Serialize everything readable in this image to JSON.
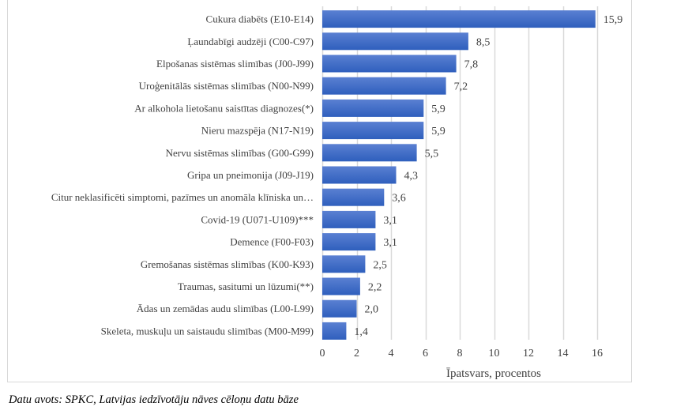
{
  "chart_data": {
    "type": "bar",
    "orientation": "horizontal",
    "categories": [
      "Cukura diabēts (E10-E14)",
      "Ļaundabīgi audzēji (C00-C97)",
      "Elpošanas sistēmas slimības (J00-J99)",
      "Uroģenitālās sistēmas slimības (N00-N99)",
      "Ar alkohola lietošanu saistītas diagnozes(*)",
      "Nieru mazspēja (N17-N19)",
      "Nervu sistēmas slimības (G00-G99)",
      "Gripa un pneimonija (J09-J19)",
      "Citur neklasificēti simptomi, pazīmes un anomāla klīniska un…",
      "Covid-19 (U071-U109)***",
      "Demence (F00-F03)",
      "Gremošanas sistēmas slimības (K00-K93)",
      "Traumas, sasitumi un lūzumi(**)",
      "Ādas un zemādas audu slimības (L00-L99)",
      "Skeleta, muskuļu un saistaudu slimības (M00-M99)"
    ],
    "values": [
      15.9,
      8.5,
      7.8,
      7.2,
      5.9,
      5.9,
      5.5,
      4.3,
      3.6,
      3.1,
      3.1,
      2.5,
      2.2,
      2.0,
      1.4
    ],
    "value_labels": [
      "15,9",
      "8,5",
      "7,8",
      "7,2",
      "5,9",
      "5,9",
      "5,5",
      "4,3",
      "3,6",
      "3,1",
      "3,1",
      "2,5",
      "2,2",
      "2,0",
      "1,4"
    ],
    "title": "",
    "xlabel": "Īpatsvars, procentos",
    "ylabel": "",
    "xlim": [
      0,
      16
    ],
    "xticks": [
      0,
      2,
      4,
      6,
      8,
      10,
      12,
      14,
      16
    ],
    "xtick_labels": [
      "0",
      "2",
      "4",
      "6",
      "8",
      "10",
      "12",
      "14",
      "16"
    ],
    "grid": true,
    "legend": "none",
    "bar_color_top": "#5a80d2",
    "bar_color_bottom": "#2f5fbd",
    "grid_color": "#d9d9d9"
  },
  "source_note": "Datu avots: SPKC, Latvijas iedzīvotāju nāves cēloņu datu bāze"
}
